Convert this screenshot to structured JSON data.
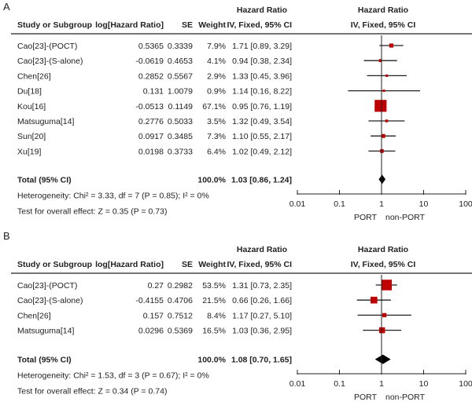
{
  "colors": {
    "square": "#c00000",
    "line": "#222222",
    "diamond": "#000000"
  },
  "chart_data": [
    {
      "type": "forest",
      "panel_label": "A",
      "headers": {
        "study": "Study or Subgroup",
        "loghr": "log[Hazard Ratio]",
        "se": "SE",
        "weight": "Weight",
        "hr_top": "Hazard Ratio",
        "hr_sub": "IV, Fixed, 95% CI",
        "plot_top": "Hazard Ratio",
        "plot_sub": "IV, Fixed, 95% CI"
      },
      "studies": [
        {
          "name": "Cao[23]-(POCT)",
          "loghr": "0.5365",
          "se": "0.3339",
          "weight": "7.9%",
          "ci_text": "1.71 [0.89, 3.29]",
          "hr": 1.71,
          "lo": 0.89,
          "hi": 3.29,
          "w": 7.9
        },
        {
          "name": "Cao[23]-(S-alone)",
          "loghr": "-0.0619",
          "se": "0.4653",
          "weight": "4.1%",
          "ci_text": "0.94 [0.38, 2.34]",
          "hr": 0.94,
          "lo": 0.38,
          "hi": 2.34,
          "w": 4.1
        },
        {
          "name": "Chen[26]",
          "loghr": "0.2852",
          "se": "0.5567",
          "weight": "2.9%",
          "ci_text": "1.33 [0.45, 3.96]",
          "hr": 1.33,
          "lo": 0.45,
          "hi": 3.96,
          "w": 2.9
        },
        {
          "name": "Du[18]",
          "loghr": "0.131",
          "se": "1.0079",
          "weight": "0.9%",
          "ci_text": "1.14 [0.16, 8.22]",
          "hr": 1.14,
          "lo": 0.16,
          "hi": 8.22,
          "w": 0.9
        },
        {
          "name": "Kou[16]",
          "loghr": "-0.0513",
          "se": "0.1149",
          "weight": "67.1%",
          "ci_text": "0.95 [0.76, 1.19]",
          "hr": 0.95,
          "lo": 0.76,
          "hi": 1.19,
          "w": 67.1
        },
        {
          "name": "Matsuguma[14]",
          "loghr": "0.2776",
          "se": "0.5033",
          "weight": "3.5%",
          "ci_text": "1.32 [0.49, 3.54]",
          "hr": 1.32,
          "lo": 0.49,
          "hi": 3.54,
          "w": 3.5
        },
        {
          "name": "Sun[20]",
          "loghr": "0.0917",
          "se": "0.3485",
          "weight": "7.3%",
          "ci_text": "1.10 [0.55, 2.17]",
          "hr": 1.1,
          "lo": 0.55,
          "hi": 2.17,
          "w": 7.3
        },
        {
          "name": "Xu[19]",
          "loghr": "0.0198",
          "se": "0.3733",
          "weight": "6.4%",
          "ci_text": "1.02 [0.49, 2.12]",
          "hr": 1.02,
          "lo": 0.49,
          "hi": 2.12,
          "w": 6.4
        }
      ],
      "total": {
        "label": "Total (95% CI)",
        "weight": "100.0%",
        "ci_text": "1.03 [0.86, 1.24]",
        "hr": 1.03,
        "lo": 0.86,
        "hi": 1.24
      },
      "heterogeneity": "Heterogeneity: Chi² = 3.33, df = 7 (P = 0.85); I² = 0%",
      "overall": "Test for overall effect: Z = 0.35 (P = 0.73)",
      "x_scale": "log",
      "xlim": [
        0.01,
        100
      ],
      "ticks": [
        "0.01",
        "0.1",
        "1",
        "10",
        "100"
      ],
      "favours_left": "PORT",
      "favours_right": "non-PORT"
    },
    {
      "type": "forest",
      "panel_label": "B",
      "headers": {
        "study": "Study or Subgroup",
        "loghr": "log[Hazard Ratio]",
        "se": "SE",
        "weight": "Weight",
        "hr_top": "Hazard Ratio",
        "hr_sub": "IV, Fixed, 95% CI",
        "plot_top": "Hazard Ratio",
        "plot_sub": "IV, Fixed, 95% CI"
      },
      "studies": [
        {
          "name": "Cao[23]-(POCT)",
          "loghr": "0.27",
          "se": "0.2982",
          "weight": "53.5%",
          "ci_text": "1.31 [0.73, 2.35]",
          "hr": 1.31,
          "lo": 0.73,
          "hi": 2.35,
          "w": 53.5
        },
        {
          "name": "Cao[23]-(S-alone)",
          "loghr": "-0.4155",
          "se": "0.4706",
          "weight": "21.5%",
          "ci_text": "0.66 [0.26, 1.66]",
          "hr": 0.66,
          "lo": 0.26,
          "hi": 1.66,
          "w": 21.5
        },
        {
          "name": "Chen[26]",
          "loghr": "0.157",
          "se": "0.7512",
          "weight": "8.4%",
          "ci_text": "1.17 [0.27, 5.10]",
          "hr": 1.17,
          "lo": 0.27,
          "hi": 5.1,
          "w": 8.4
        },
        {
          "name": "Matsuguma[14]",
          "loghr": "0.0296",
          "se": "0.5369",
          "weight": "16.5%",
          "ci_text": "1.03 [0.36, 2.95]",
          "hr": 1.03,
          "lo": 0.36,
          "hi": 2.95,
          "w": 16.5
        }
      ],
      "total": {
        "label": "Total (95% CI)",
        "weight": "100.0%",
        "ci_text": "1.08 [0.70, 1.65]",
        "hr": 1.08,
        "lo": 0.7,
        "hi": 1.65
      },
      "heterogeneity": "Heterogeneity: Chi² = 1.53, df = 3 (P = 0.67); I² = 0%",
      "overall": "Test for overall effect: Z = 0.34 (P = 0.74)",
      "x_scale": "log",
      "xlim": [
        0.01,
        100
      ],
      "ticks": [
        "0.01",
        "0.1",
        "1",
        "10",
        "100"
      ],
      "favours_left": "PORT",
      "favours_right": "non-PORT"
    }
  ]
}
